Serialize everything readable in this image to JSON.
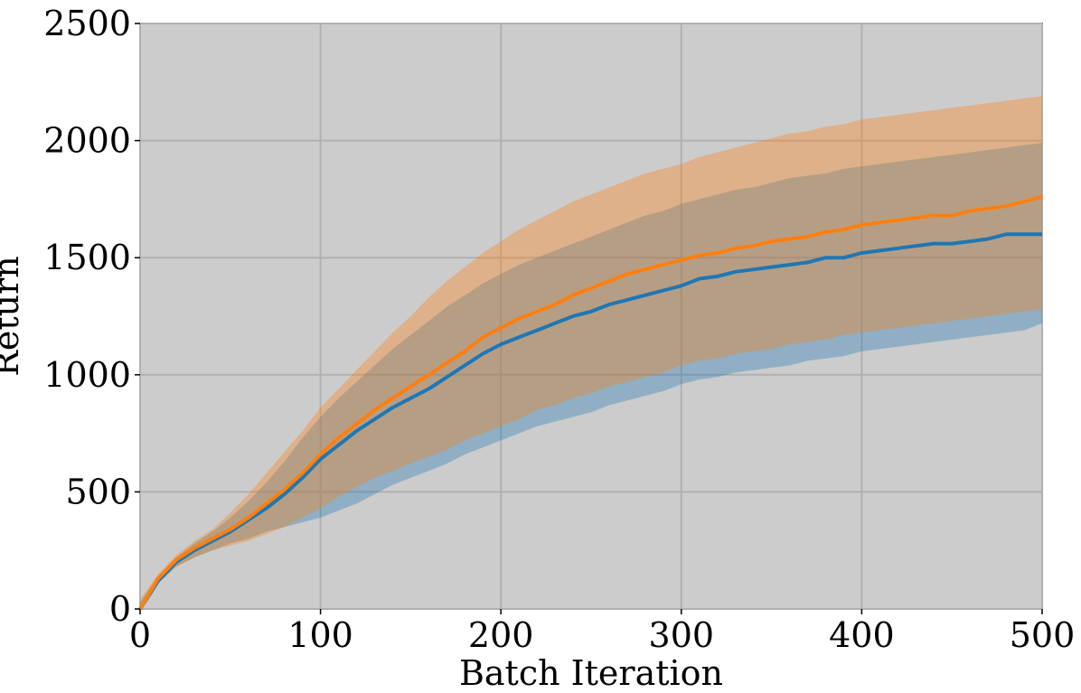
{
  "chart_data": {
    "type": "line",
    "title": "",
    "xlabel": "Batch Iteration",
    "ylabel": "Return",
    "xlim": [
      0,
      500
    ],
    "ylim": [
      0,
      2500
    ],
    "xticks": [
      0,
      100,
      200,
      300,
      400,
      500
    ],
    "yticks": [
      0,
      500,
      1000,
      1500,
      2000,
      2500
    ],
    "grid": true,
    "legend": "none",
    "plot_background": "#cccccc",
    "grid_color": "#b0b0b0",
    "x": [
      0,
      10,
      20,
      30,
      40,
      50,
      60,
      70,
      80,
      90,
      100,
      110,
      120,
      130,
      140,
      150,
      160,
      170,
      180,
      190,
      200,
      210,
      220,
      230,
      240,
      250,
      260,
      270,
      280,
      290,
      300,
      310,
      320,
      330,
      340,
      350,
      360,
      370,
      380,
      390,
      400,
      410,
      420,
      430,
      440,
      450,
      460,
      470,
      480,
      490,
      500
    ],
    "series": [
      {
        "color": "#1f77b4",
        "mean": [
          0,
          120,
          200,
          250,
          290,
          330,
          380,
          430,
          490,
          560,
          640,
          700,
          760,
          810,
          860,
          900,
          940,
          990,
          1040,
          1090,
          1130,
          1160,
          1190,
          1220,
          1250,
          1270,
          1300,
          1320,
          1340,
          1360,
          1380,
          1410,
          1420,
          1440,
          1450,
          1460,
          1470,
          1480,
          1500,
          1500,
          1520,
          1530,
          1540,
          1550,
          1560,
          1560,
          1570,
          1580,
          1600,
          1600,
          1600
        ],
        "lower": [
          0,
          110,
          180,
          220,
          250,
          280,
          300,
          330,
          350,
          370,
          390,
          420,
          450,
          490,
          530,
          560,
          590,
          620,
          660,
          690,
          720,
          750,
          780,
          800,
          820,
          840,
          870,
          890,
          910,
          930,
          960,
          980,
          990,
          1010,
          1020,
          1030,
          1040,
          1060,
          1070,
          1080,
          1100,
          1110,
          1120,
          1130,
          1140,
          1150,
          1160,
          1170,
          1180,
          1190,
          1220
        ],
        "upper": [
          30,
          140,
          220,
          280,
          330,
          390,
          460,
          540,
          630,
          730,
          820,
          900,
          970,
          1040,
          1110,
          1170,
          1230,
          1290,
          1340,
          1390,
          1430,
          1470,
          1500,
          1530,
          1560,
          1590,
          1620,
          1650,
          1680,
          1700,
          1730,
          1750,
          1770,
          1790,
          1800,
          1820,
          1840,
          1850,
          1860,
          1880,
          1890,
          1900,
          1910,
          1920,
          1930,
          1940,
          1950,
          1960,
          1970,
          1980,
          1990
        ]
      },
      {
        "color": "#ff7f0e",
        "mean": [
          0,
          130,
          210,
          260,
          300,
          340,
          390,
          450,
          510,
          580,
          660,
          730,
          790,
          850,
          900,
          950,
          1000,
          1050,
          1100,
          1160,
          1200,
          1240,
          1270,
          1300,
          1340,
          1370,
          1400,
          1430,
          1450,
          1470,
          1490,
          1510,
          1520,
          1540,
          1550,
          1570,
          1580,
          1590,
          1610,
          1620,
          1640,
          1650,
          1660,
          1670,
          1680,
          1680,
          1700,
          1710,
          1720,
          1740,
          1760
        ],
        "lower": [
          0,
          110,
          180,
          220,
          250,
          270,
          290,
          320,
          350,
          390,
          430,
          480,
          520,
          560,
          590,
          620,
          650,
          680,
          720,
          750,
          780,
          810,
          850,
          870,
          900,
          920,
          950,
          970,
          990,
          1010,
          1040,
          1060,
          1070,
          1090,
          1100,
          1110,
          1130,
          1140,
          1150,
          1170,
          1180,
          1190,
          1200,
          1210,
          1220,
          1230,
          1240,
          1250,
          1260,
          1270,
          1280
        ],
        "upper": [
          40,
          150,
          230,
          290,
          340,
          410,
          490,
          580,
          670,
          760,
          860,
          940,
          1020,
          1100,
          1180,
          1250,
          1330,
          1400,
          1460,
          1520,
          1570,
          1620,
          1660,
          1700,
          1740,
          1770,
          1800,
          1830,
          1860,
          1880,
          1900,
          1930,
          1950,
          1970,
          1990,
          2010,
          2030,
          2040,
          2060,
          2070,
          2090,
          2100,
          2110,
          2120,
          2130,
          2140,
          2150,
          2160,
          2170,
          2180,
          2190
        ]
      }
    ]
  }
}
